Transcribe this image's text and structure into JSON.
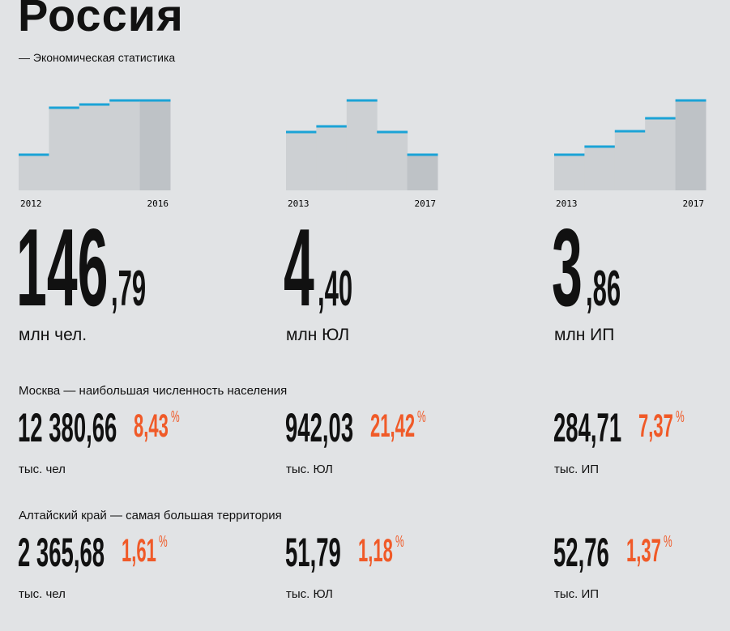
{
  "header": {
    "title": "Россия",
    "subtitle": "— Экономическая статистика"
  },
  "panels": [
    {
      "chart": {
        "type": "bar",
        "categories": [
          "2012",
          null,
          null,
          null,
          "2016"
        ],
        "values": [
          44,
          102,
          106,
          111,
          111
        ],
        "ylim": [
          0,
          120
        ],
        "color": "#cdd0d3",
        "last_color": "#bec2c6",
        "line_color": "#1ba3d6"
      },
      "int": "146",
      "frac": ",79",
      "unit": "млн чел."
    },
    {
      "chart": {
        "type": "bar",
        "categories": [
          "2013",
          null,
          null,
          null,
          "2017"
        ],
        "values": [
          72,
          79,
          111,
          72,
          44
        ],
        "ylim": [
          0,
          120
        ],
        "color": "#cdd0d3",
        "last_color": "#bec2c6",
        "line_color": "#1ba3d6"
      },
      "int": "4",
      "frac": ",40",
      "unit": "млн ЮЛ"
    },
    {
      "chart": {
        "type": "bar",
        "categories": [
          "2013",
          null,
          null,
          null,
          "2017"
        ],
        "values": [
          44,
          54,
          73,
          89,
          111
        ],
        "ylim": [
          0,
          120
        ],
        "color": "#cdd0d3",
        "last_color": "#bec2c6",
        "line_color": "#1ba3d6"
      },
      "int": "3",
      "frac": ",86",
      "unit": "млн ИП"
    }
  ],
  "sections": [
    {
      "title": "Москва — наибольшая численность населения",
      "items": [
        {
          "value": "12 380,66",
          "share": "8,43",
          "pct": "%",
          "unit": "тыс. чел"
        },
        {
          "value": "942,03",
          "share": "21,42",
          "pct": "%",
          "unit": "тыс. ЮЛ"
        },
        {
          "value": "284,71",
          "share": "7,37",
          "pct": "%",
          "unit": "тыс. ИП"
        }
      ]
    },
    {
      "title": "Алтайский край — самая большая территория",
      "items": [
        {
          "value": "2 365,68",
          "share": "1,61",
          "pct": "%",
          "unit": "тыс. чел"
        },
        {
          "value": "51,79",
          "share": "1,18",
          "pct": "%",
          "unit": "тыс. ЮЛ"
        },
        {
          "value": "52,76",
          "share": "1,37",
          "pct": "%",
          "unit": "тыс. ИП"
        }
      ]
    }
  ]
}
